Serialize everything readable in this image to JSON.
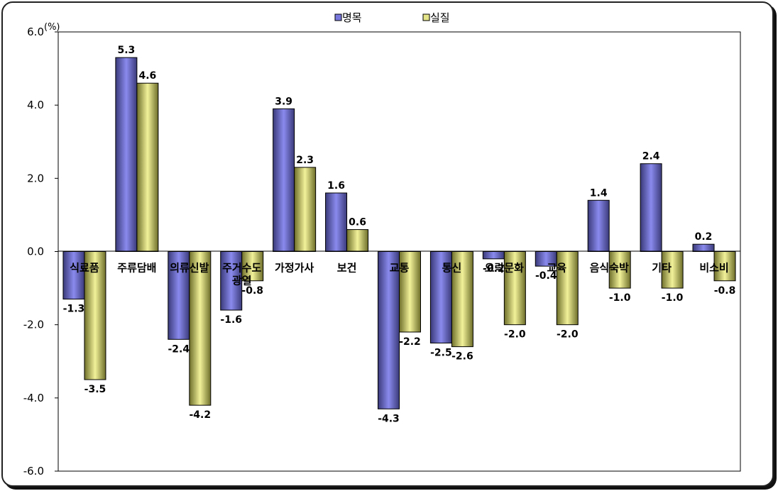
{
  "chart_data": {
    "type": "bar",
    "unit": "(%)",
    "categories": [
      "식료품",
      "주류담배",
      "의류신발",
      "주거수도광열",
      "가정가사",
      "보건",
      "교통",
      "통신",
      "오락문화",
      "교육",
      "음식숙박",
      "기타",
      "비소비"
    ],
    "series": [
      {
        "name": "명목",
        "values": [
          -1.3,
          5.3,
          -2.4,
          -1.6,
          3.9,
          1.6,
          -4.3,
          -2.5,
          -0.2,
          -0.4,
          1.4,
          2.4,
          0.2
        ],
        "color": "#7777dd"
      },
      {
        "name": "실질",
        "values": [
          -3.5,
          4.6,
          -4.2,
          -0.8,
          2.3,
          0.6,
          -2.2,
          -2.6,
          -2.0,
          -2.0,
          -1.0,
          -1.0,
          -0.8
        ],
        "color": "#e4e488"
      }
    ],
    "y_ticks": [
      "6.0",
      "4.0",
      "2.0",
      "0.0",
      "-2.0",
      "-4.0",
      "-6.0"
    ],
    "ylim": [
      -6,
      6
    ],
    "legend_position": "top-center",
    "grid": false
  }
}
